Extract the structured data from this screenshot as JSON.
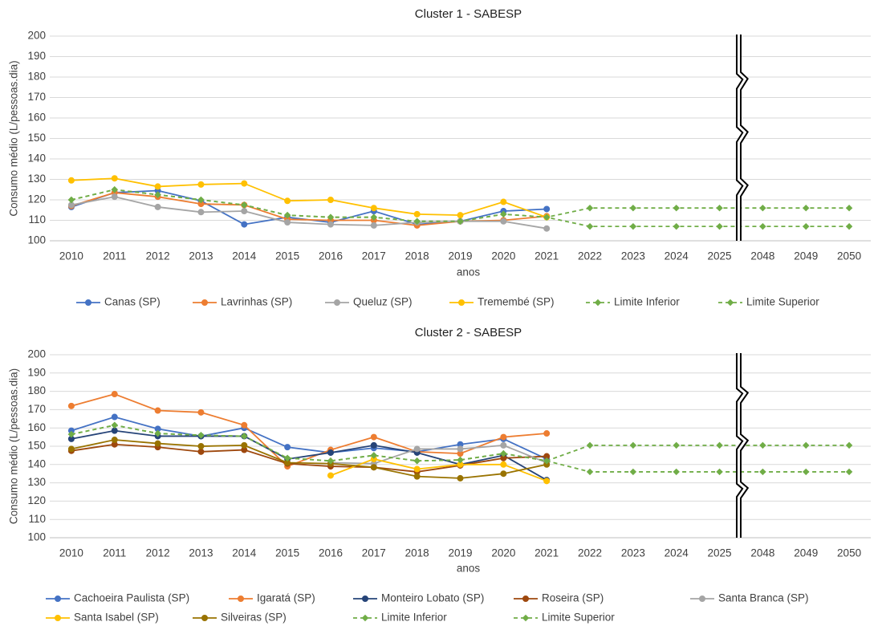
{
  "chart_data": [
    {
      "type": "line",
      "title": "Cluster 1 - SABESP",
      "x_label": "anos",
      "y_label": "Consumo médio (L/pessoas.dia)",
      "categories": [
        "2010",
        "2011",
        "2012",
        "2013",
        "2014",
        "2015",
        "2016",
        "2017",
        "2018",
        "2019",
        "2020",
        "2021",
        "2022",
        "2023",
        "2024",
        "2025",
        "2048",
        "2049",
        "2050"
      ],
      "ylim": [
        100,
        200
      ],
      "yticks": [
        100,
        110,
        120,
        130,
        140,
        150,
        160,
        170,
        180,
        190,
        200
      ],
      "grid": true,
      "legend": "bottom",
      "series": [
        {
          "name": "Canas (SP)",
          "color": "#4472c4",
          "marker": "circle",
          "line_style": "solid",
          "values": [
            116.5,
            123.5,
            124.5,
            119.5,
            108,
            111.5,
            109,
            114.5,
            108,
            109.5,
            114.5,
            115.5,
            null,
            null,
            null,
            null,
            null,
            null,
            null
          ]
        },
        {
          "name": "Lavrinhas (SP)",
          "color": "#ed7d31",
          "marker": "circle",
          "line_style": "solid",
          "values": [
            117,
            123.5,
            121.5,
            118,
            117.5,
            110.5,
            110,
            110,
            107.5,
            109.5,
            110,
            112,
            null,
            null,
            null,
            null,
            null,
            null,
            null
          ]
        },
        {
          "name": "Queluz (SP)",
          "color": "#a5a5a5",
          "marker": "circle",
          "line_style": "solid",
          "values": [
            117.5,
            121.5,
            116.5,
            114,
            114.5,
            109,
            108,
            107.5,
            109,
            109.5,
            109.5,
            106,
            null,
            null,
            null,
            null,
            null,
            null,
            null
          ]
        },
        {
          "name": "Tremembé (SP)",
          "color": "#ffc000",
          "marker": "circle",
          "line_style": "solid",
          "values": [
            129.5,
            130.5,
            126.5,
            127.5,
            128,
            119.5,
            120,
            116,
            113,
            112.5,
            119,
            111.5,
            null,
            null,
            null,
            null,
            null,
            null,
            null
          ]
        },
        {
          "name": "Limite Inferior",
          "color": "#70ad47",
          "marker": "diamond",
          "line_style": "dashed",
          "values": [
            120,
            125,
            122.5,
            120,
            117.5,
            112.5,
            111.5,
            111.5,
            109.5,
            109.5,
            113,
            111.5,
            107,
            107,
            107,
            107,
            107,
            107,
            107
          ]
        },
        {
          "name": "Limite Superior",
          "color": "#70ad47",
          "marker": "diamond",
          "line_style": "dashed",
          "values": [
            120,
            125,
            122.5,
            120,
            117.5,
            112.5,
            111.5,
            111.5,
            109.5,
            109.5,
            113,
            111.5,
            116,
            116,
            116,
            116,
            116,
            116,
            116
          ]
        }
      ]
    },
    {
      "type": "line",
      "title": "Cluster 2 - SABESP",
      "x_label": "anos",
      "y_label": "Consumo médio (L/pessoas.dia)",
      "categories": [
        "2010",
        "2011",
        "2012",
        "2013",
        "2014",
        "2015",
        "2016",
        "2017",
        "2018",
        "2019",
        "2020",
        "2021",
        "2022",
        "2023",
        "2024",
        "2025",
        "2048",
        "2049",
        "2050"
      ],
      "ylim": [
        100,
        200
      ],
      "yticks": [
        100,
        110,
        120,
        130,
        140,
        150,
        160,
        170,
        180,
        190,
        200
      ],
      "grid": true,
      "legend": "bottom",
      "series": [
        {
          "name": "Cachoeira Paulista (SP)",
          "color": "#4472c4",
          "marker": "circle",
          "line_style": "solid",
          "values": [
            158.5,
            166,
            159.5,
            155.5,
            160,
            149.5,
            146.5,
            149,
            147,
            151,
            154,
            143,
            null,
            null,
            null,
            null,
            null,
            null,
            null
          ]
        },
        {
          "name": "Igaratá (SP)",
          "color": "#ed7d31",
          "marker": "circle",
          "line_style": "solid",
          "values": [
            172,
            178.5,
            169.5,
            168.5,
            161.5,
            139,
            148,
            155,
            147,
            146,
            155,
            157,
            null,
            null,
            null,
            null,
            null,
            null,
            null
          ]
        },
        {
          "name": "Monteiro Lobato (SP)",
          "color": "#264478",
          "marker": "circle",
          "line_style": "solid",
          "values": [
            154,
            158.5,
            155.5,
            155.5,
            155.5,
            143,
            146.5,
            150.5,
            146.5,
            140,
            145,
            131.5,
            null,
            null,
            null,
            null,
            null,
            null,
            null
          ]
        },
        {
          "name": "Roseira (SP)",
          "color": "#9e480e",
          "marker": "circle",
          "line_style": "solid",
          "values": [
            147.5,
            151,
            149.5,
            147,
            148,
            140.5,
            139,
            138.5,
            136,
            139.5,
            143.5,
            144.5,
            null,
            null,
            null,
            null,
            null,
            null,
            null
          ]
        },
        {
          "name": "Santa Branca (SP)",
          "color": "#a5a5a5",
          "marker": "circle",
          "line_style": "solid",
          "values": [
            null,
            null,
            null,
            null,
            null,
            null,
            141,
            140.5,
            148.5,
            148.5,
            150.5,
            141,
            null,
            null,
            null,
            null,
            null,
            null,
            null
          ]
        },
        {
          "name": "Santa Isabel (SP)",
          "color": "#ffc000",
          "marker": "circle",
          "line_style": "solid",
          "values": [
            null,
            null,
            null,
            null,
            null,
            null,
            134,
            143,
            137.5,
            140,
            140,
            131,
            null,
            null,
            null,
            null,
            null,
            null,
            null
          ]
        },
        {
          "name": "Silveiras (SP)",
          "color": "#997300",
          "marker": "circle",
          "line_style": "solid",
          "values": [
            148.5,
            153.5,
            151.5,
            150,
            150.5,
            141,
            140.5,
            138.5,
            133.5,
            132.5,
            135,
            140,
            null,
            null,
            null,
            null,
            null,
            null,
            null
          ]
        },
        {
          "name": "Limite Inferior",
          "color": "#70ad47",
          "marker": "diamond",
          "line_style": "dashed",
          "values": [
            156.5,
            161.5,
            157,
            156,
            155.5,
            143.5,
            142,
            145,
            142,
            142.5,
            146,
            142,
            136,
            136,
            136,
            136,
            136,
            136,
            136
          ]
        },
        {
          "name": "Limite Superior",
          "color": "#70ad47",
          "marker": "diamond",
          "line_style": "dashed",
          "values": [
            156.5,
            161.5,
            157,
            156,
            155.5,
            143.5,
            142,
            145,
            142,
            142.5,
            146,
            142,
            150.5,
            150.5,
            150.5,
            150.5,
            150.5,
            150.5,
            150.5
          ]
        }
      ]
    }
  ]
}
